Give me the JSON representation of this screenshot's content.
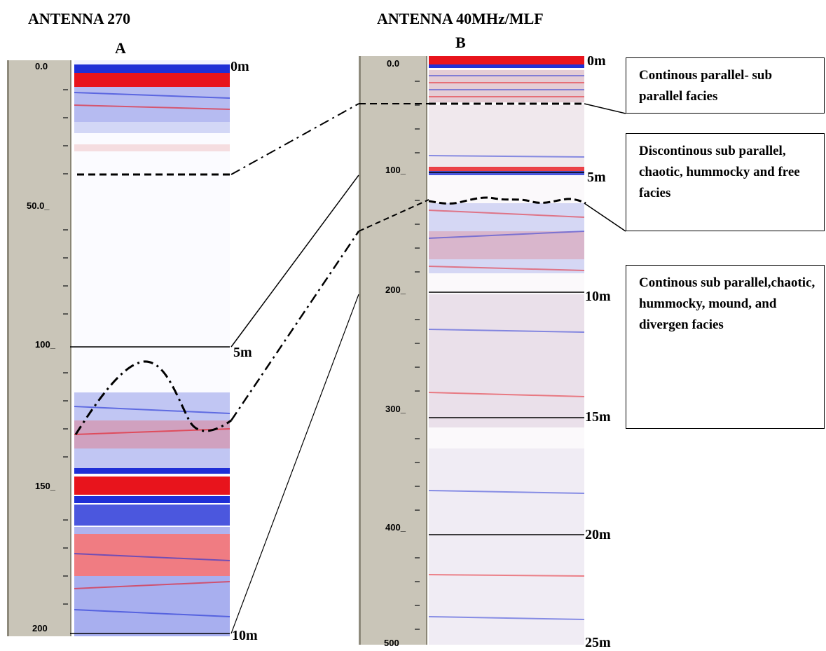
{
  "panel_a": {
    "title": "ANTENNA 270",
    "letter": "A",
    "scale_labels": [
      "0.0",
      "50.0_",
      "100_",
      "150_",
      "200"
    ],
    "depth_labels": [
      "0m",
      "5m",
      "10m"
    ]
  },
  "panel_b": {
    "title": "ANTENNA 40MHz/MLF",
    "letter": "B",
    "scale_labels": [
      "0.0",
      "100_",
      "200_",
      "300_",
      "400_",
      "500"
    ],
    "depth_labels": [
      "0m",
      "5m",
      "10m",
      "15m",
      "20m",
      "25m"
    ]
  },
  "facies": [
    {
      "text": "Continous parallel- sub parallel facies"
    },
    {
      "text": "Discontinous sub parallel, chaotic, hummocky and  free facies"
    },
    {
      "text": "Continous sub parallel,chaotic, hummocky, mound, and divergen facies"
    }
  ],
  "colors": {
    "positive": "#e8141c",
    "negative": "#1f2fd6",
    "ruler": "#c9c5b8"
  }
}
